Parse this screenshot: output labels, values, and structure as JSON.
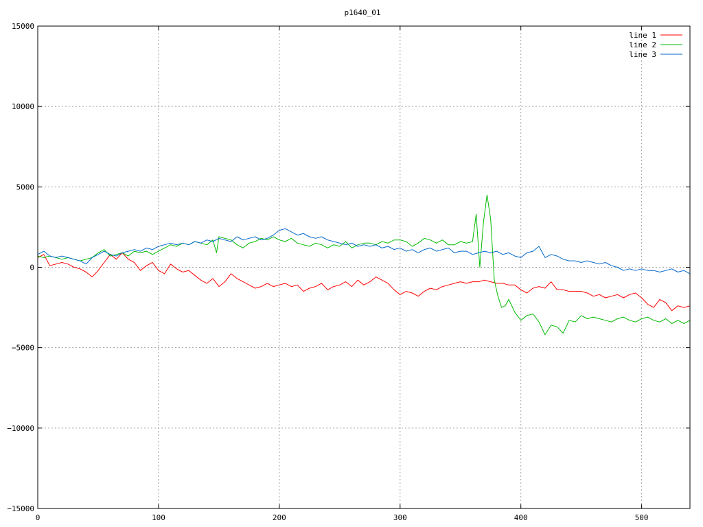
{
  "chart_data": {
    "type": "line",
    "title": "p1640_01",
    "xlabel": "",
    "ylabel": "",
    "xlim": [
      0,
      540
    ],
    "ylim": [
      -15000,
      15000
    ],
    "xticks": [
      0,
      100,
      200,
      300,
      400,
      500
    ],
    "yticks": [
      -15000,
      -10000,
      -5000,
      0,
      5000,
      10000,
      15000
    ],
    "grid": true,
    "legend_position": "top-right",
    "series": [
      {
        "name": "line 1",
        "color": "#ff0000",
        "x": [
          0,
          5,
          10,
          15,
          20,
          25,
          30,
          35,
          40,
          45,
          50,
          55,
          60,
          65,
          70,
          75,
          80,
          85,
          90,
          95,
          100,
          105,
          110,
          115,
          120,
          125,
          130,
          135,
          140,
          145,
          150,
          155,
          160,
          165,
          170,
          175,
          180,
          185,
          190,
          195,
          200,
          205,
          210,
          215,
          220,
          225,
          230,
          235,
          240,
          245,
          250,
          255,
          260,
          265,
          270,
          275,
          280,
          285,
          290,
          295,
          300,
          305,
          310,
          315,
          320,
          325,
          330,
          335,
          340,
          345,
          350,
          355,
          360,
          365,
          370,
          375,
          380,
          385,
          390,
          395,
          400,
          405,
          410,
          415,
          420,
          425,
          430,
          435,
          440,
          445,
          450,
          455,
          460,
          465,
          470,
          475,
          480,
          485,
          490,
          495,
          500,
          505,
          510,
          515,
          520,
          525,
          530,
          535,
          540
        ],
        "y": [
          600,
          800,
          100,
          200,
          300,
          200,
          0,
          -100,
          -300,
          -600,
          -200,
          300,
          800,
          500,
          900,
          500,
          300,
          -200,
          100,
          300,
          -200,
          -400,
          200,
          -100,
          -300,
          -200,
          -500,
          -800,
          -1000,
          -700,
          -1200,
          -900,
          -400,
          -700,
          -900,
          -1100,
          -1300,
          -1200,
          -1000,
          -1200,
          -1100,
          -1000,
          -1200,
          -1100,
          -1500,
          -1300,
          -1200,
          -1000,
          -1400,
          -1200,
          -1100,
          -900,
          -1200,
          -800,
          -1100,
          -900,
          -600,
          -800,
          -1000,
          -1400,
          -1700,
          -1500,
          -1600,
          -1800,
          -1500,
          -1300,
          -1400,
          -1200,
          -1100,
          -1000,
          -900,
          -1000,
          -900,
          -900,
          -800,
          -900,
          -1000,
          -1000,
          -1100,
          -1100,
          -1400,
          -1600,
          -1300,
          -1200,
          -1300,
          -900,
          -1400,
          -1400,
          -1500,
          -1500,
          -1500,
          -1600,
          -1800,
          -1700,
          -1900,
          -1800,
          -1700,
          -1900,
          -1700,
          -1600,
          -1900,
          -2300,
          -2500,
          -2000,
          -2200,
          -2700,
          -2400,
          -2500,
          -2400
        ]
      },
      {
        "name": "line 2",
        "color": "#00bb00",
        "x": [
          0,
          5,
          10,
          15,
          20,
          25,
          30,
          35,
          40,
          45,
          50,
          55,
          60,
          65,
          70,
          75,
          80,
          85,
          90,
          95,
          100,
          105,
          110,
          115,
          120,
          125,
          130,
          135,
          140,
          145,
          148,
          150,
          155,
          160,
          165,
          170,
          175,
          180,
          185,
          190,
          195,
          200,
          205,
          210,
          215,
          220,
          225,
          230,
          235,
          240,
          245,
          250,
          255,
          260,
          265,
          270,
          275,
          280,
          285,
          290,
          295,
          300,
          305,
          310,
          315,
          320,
          325,
          330,
          335,
          340,
          345,
          350,
          355,
          360,
          363,
          366,
          369,
          372,
          375,
          378,
          381,
          384,
          387,
          390,
          395,
          400,
          405,
          410,
          415,
          420,
          425,
          430,
          435,
          440,
          445,
          450,
          455,
          460,
          465,
          470,
          475,
          480,
          485,
          490,
          495,
          500,
          505,
          510,
          515,
          520,
          525,
          530,
          535,
          540
        ],
        "y": [
          700,
          600,
          700,
          600,
          500,
          600,
          500,
          400,
          500,
          600,
          900,
          1100,
          700,
          800,
          900,
          700,
          1000,
          900,
          1000,
          800,
          1000,
          1200,
          1400,
          1300,
          1500,
          1400,
          1600,
          1500,
          1400,
          1700,
          900,
          1900,
          1800,
          1700,
          1400,
          1200,
          1500,
          1600,
          1800,
          1700,
          1900,
          1700,
          1600,
          1800,
          1500,
          1400,
          1300,
          1500,
          1400,
          1200,
          1400,
          1300,
          1600,
          1200,
          1400,
          1500,
          1500,
          1400,
          1600,
          1500,
          1700,
          1700,
          1600,
          1300,
          1500,
          1800,
          1700,
          1500,
          1700,
          1400,
          1400,
          1600,
          1500,
          1600,
          3300,
          0,
          2800,
          4500,
          3000,
          -800,
          -1800,
          -2500,
          -2400,
          -2000,
          -2800,
          -3300,
          -3000,
          -2900,
          -3400,
          -4200,
          -3600,
          -3700,
          -4100,
          -3300,
          -3400,
          -3000,
          -3200,
          -3100,
          -3200,
          -3300,
          -3400,
          -3200,
          -3100,
          -3300,
          -3400,
          -3200,
          -3100,
          -3300,
          -3400,
          -3200,
          -3500,
          -3300,
          -3500,
          -3300
        ]
      },
      {
        "name": "line 3",
        "color": "#0066cc",
        "x": [
          0,
          5,
          10,
          15,
          20,
          25,
          30,
          35,
          40,
          45,
          50,
          55,
          60,
          65,
          70,
          75,
          80,
          85,
          90,
          95,
          100,
          105,
          110,
          115,
          120,
          125,
          130,
          135,
          140,
          145,
          150,
          155,
          160,
          165,
          170,
          175,
          180,
          185,
          190,
          195,
          200,
          205,
          210,
          215,
          220,
          225,
          230,
          235,
          240,
          245,
          250,
          255,
          260,
          265,
          270,
          275,
          280,
          285,
          290,
          295,
          300,
          305,
          310,
          315,
          320,
          325,
          330,
          335,
          340,
          345,
          350,
          355,
          360,
          365,
          370,
          375,
          380,
          385,
          390,
          395,
          400,
          405,
          410,
          415,
          420,
          425,
          430,
          435,
          440,
          445,
          450,
          455,
          460,
          465,
          470,
          475,
          480,
          485,
          490,
          495,
          500,
          505,
          510,
          515,
          520,
          525,
          530,
          535,
          540
        ],
        "y": [
          800,
          1000,
          700,
          600,
          700,
          600,
          500,
          400,
          200,
          600,
          800,
          1000,
          800,
          700,
          900,
          1000,
          1100,
          1000,
          1200,
          1100,
          1300,
          1400,
          1500,
          1400,
          1500,
          1400,
          1600,
          1500,
          1700,
          1600,
          1800,
          1700,
          1600,
          1900,
          1700,
          1800,
          1900,
          1700,
          1800,
          2000,
          2300,
          2400,
          2200,
          2000,
          2100,
          1900,
          1800,
          1900,
          1700,
          1600,
          1500,
          1400,
          1500,
          1300,
          1400,
          1300,
          1400,
          1200,
          1300,
          1100,
          1200,
          1000,
          1100,
          900,
          1100,
          1200,
          1000,
          1100,
          1200,
          900,
          1000,
          1000,
          800,
          900,
          1000,
          900,
          1000,
          800,
          900,
          700,
          600,
          900,
          1000,
          1300,
          600,
          800,
          700,
          500,
          400,
          400,
          300,
          400,
          300,
          200,
          300,
          100,
          0,
          -200,
          -100,
          -200,
          -100,
          -200,
          -200,
          -300,
          -200,
          -100,
          -300,
          -200,
          -400
        ]
      }
    ]
  }
}
